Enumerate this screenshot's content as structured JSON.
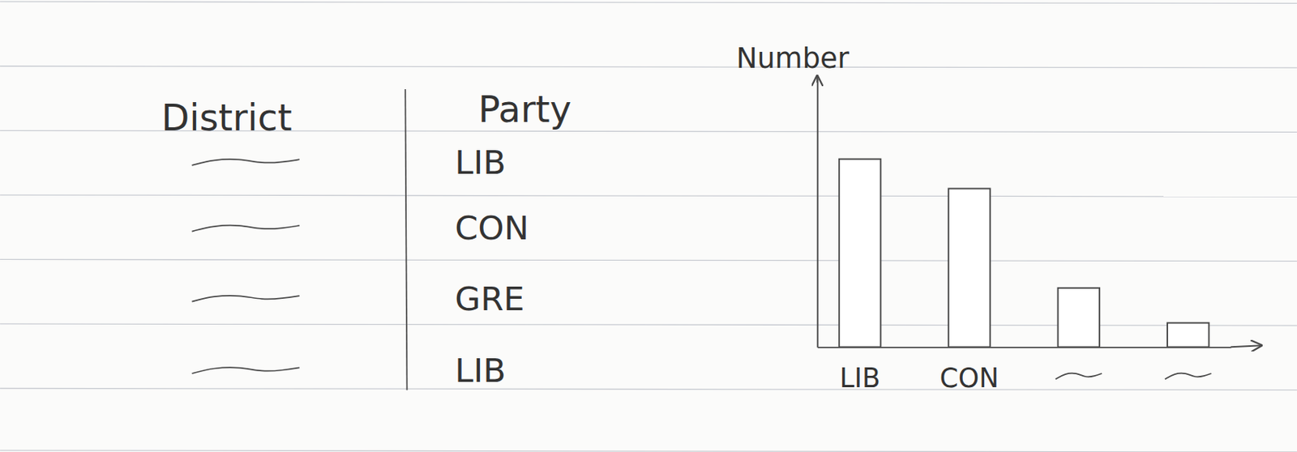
{
  "table": {
    "columns": [
      "District",
      "Party"
    ],
    "rows": [
      [
        null,
        "LIB"
      ],
      [
        null,
        "CON"
      ],
      [
        null,
        "GRE"
      ],
      [
        null,
        "LIB"
      ]
    ]
  },
  "chart_data": {
    "type": "bar",
    "y_label": "Number",
    "categories": [
      "LIB",
      "CON",
      null,
      null
    ],
    "values": [
      70,
      59,
      22,
      9
    ],
    "ylim": [
      0,
      100
    ],
    "tick_labels": "x",
    "color": "#ffffff"
  }
}
